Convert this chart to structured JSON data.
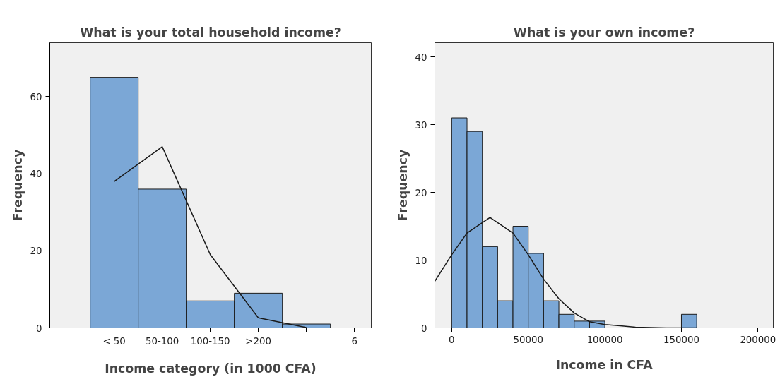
{
  "chart_data": [
    {
      "type": "bar",
      "title": "What is your total household income?",
      "xlabel": "Income category (in 1000 CFA)",
      "ylabel": "Frequency",
      "categories": [
        "< 50",
        "50-100",
        "100-150",
        ">200",
        null
      ],
      "values": [
        65,
        36,
        7,
        9,
        1
      ],
      "color": "#7ba7d6",
      "series": [
        {
          "type": "line",
          "color": "#1a1a1a",
          "values": [
            38,
            47,
            19,
            2.6,
            0.1
          ]
        }
      ],
      "annotations": [
        "6"
      ],
      "ylim": [
        0,
        74
      ],
      "yticks": [
        0,
        20,
        40,
        60
      ],
      "grid": false
    },
    {
      "type": "histogram",
      "title": "What is your own income?",
      "xlabel": "Income in CFA",
      "ylabel": "Frequency",
      "bins": [
        0,
        10000,
        20000,
        30000,
        40000,
        50000,
        60000,
        70000,
        80000,
        90000,
        100000,
        110000,
        120000,
        130000,
        140000,
        150000,
        160000
      ],
      "values": [
        31,
        29,
        12,
        4,
        15,
        11,
        4,
        2,
        1,
        1,
        0,
        0,
        0,
        0,
        0,
        2
      ],
      "color": "#7ba7d6",
      "series": [
        {
          "type": "line",
          "color": "#1a1a1a",
          "x": [
            -11000,
            0,
            10000,
            25000,
            40000,
            50000,
            60000,
            70000,
            80000,
            90000,
            100000,
            110000,
            120000,
            140000,
            160000
          ],
          "values": [
            6.9,
            10.8,
            14.0,
            16.3,
            14.0,
            10.8,
            7.2,
            4.3,
            2.2,
            0.9,
            0.5,
            0.3,
            0.1,
            0,
            0
          ]
        }
      ],
      "xlim": [
        -11000,
        210000
      ],
      "ylim": [
        0,
        42.1
      ],
      "xticks": [
        0,
        50000,
        100000,
        150000,
        200000
      ],
      "yticks": [
        0,
        10,
        20,
        30,
        40
      ],
      "grid": false
    }
  ]
}
